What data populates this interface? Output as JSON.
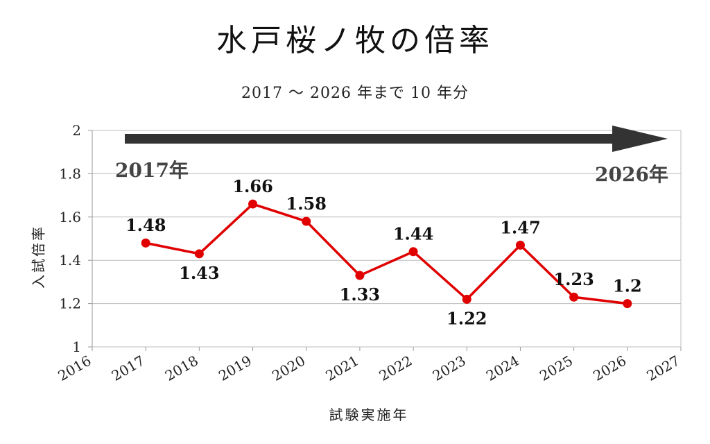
{
  "chart_data": {
    "type": "line",
    "title": "水戸桜ノ牧の倍率",
    "subtitle": "2017 ～ 2026 年まで 10 年分",
    "xlabel": "試験実施年",
    "ylabel": "入試倍率",
    "x_ticks": [
      "2016",
      "2017",
      "2018",
      "2019",
      "2020",
      "2021",
      "2022",
      "2023",
      "2024",
      "2025",
      "2026",
      "2027"
    ],
    "y_ticks": [
      "1",
      "1.2",
      "1.4",
      "1.6",
      "1.8",
      "2"
    ],
    "xlim": [
      2016,
      2027
    ],
    "ylim": [
      1,
      2
    ],
    "grid": true,
    "series": [
      {
        "x": [
          2017,
          2018,
          2019,
          2020,
          2021,
          2022,
          2023,
          2024,
          2025,
          2026
        ],
        "values": [
          1.48,
          1.43,
          1.66,
          1.58,
          1.33,
          1.44,
          1.22,
          1.47,
          1.23,
          1.2
        ],
        "labels": [
          "1.48",
          "1.43",
          "1.66",
          "1.58",
          "1.33",
          "1.44",
          "1.22",
          "1.47",
          "1.23",
          "1.2"
        ],
        "color": "#e00000"
      }
    ],
    "annotations": {
      "arrow_start_label": "2017年",
      "arrow_end_label": "2026年",
      "arrow_color": "#333333"
    }
  }
}
